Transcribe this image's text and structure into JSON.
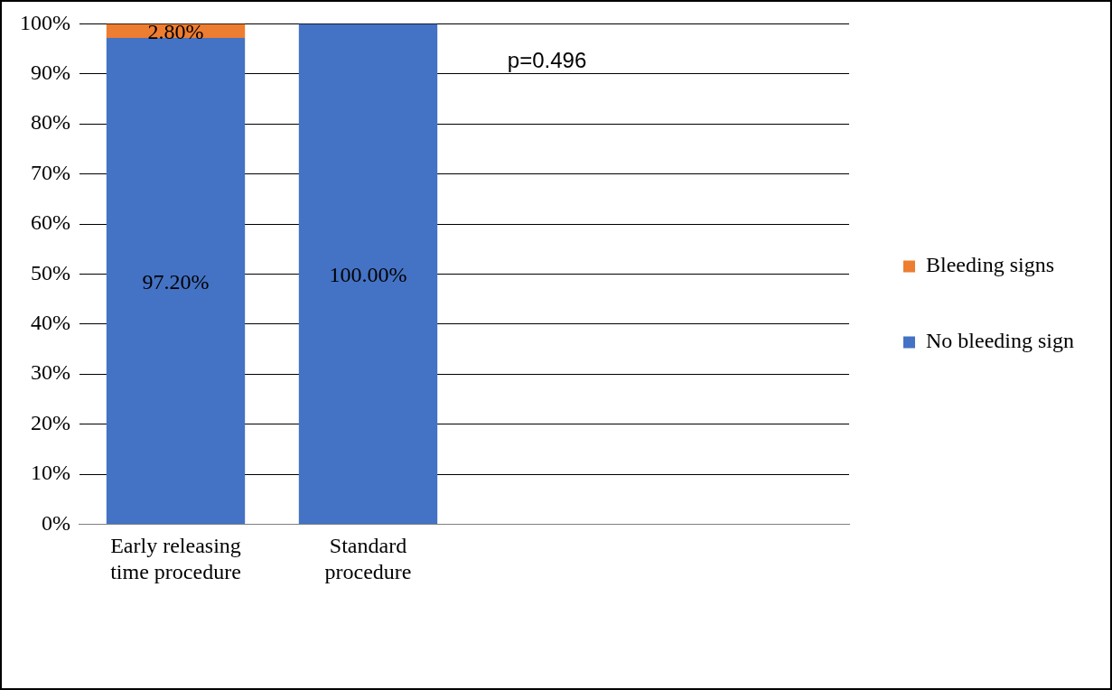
{
  "chart_data": {
    "type": "bar",
    "stacked": true,
    "categories": [
      "Early releasing time procedure",
      "Standard procedure",
      null,
      null
    ],
    "series": [
      {
        "name": "No bleeding sign",
        "color": "#4472c4",
        "values": [
          97.2,
          100,
          null,
          null
        ],
        "value_labels": [
          "97.20%",
          "100.00%",
          null,
          null
        ]
      },
      {
        "name": "Bleeding signs",
        "color": "#ed7d31",
        "values": [
          2.8,
          0,
          null,
          null
        ],
        "value_labels": [
          "2.80%",
          null,
          null,
          null
        ]
      }
    ],
    "ylim": [
      0,
      100
    ],
    "yticks": [
      {
        "value": 0,
        "label": "0%"
      },
      {
        "value": 10,
        "label": "10%"
      },
      {
        "value": 20,
        "label": "20%"
      },
      {
        "value": 30,
        "label": "30%"
      },
      {
        "value": 40,
        "label": "40%"
      },
      {
        "value": 50,
        "label": "50%"
      },
      {
        "value": 60,
        "label": "60%"
      },
      {
        "value": 70,
        "label": "70%"
      },
      {
        "value": 80,
        "label": "80%"
      },
      {
        "value": 90,
        "label": "90%"
      },
      {
        "value": 100,
        "label": "100%"
      }
    ],
    "grid": "y",
    "legend": "right",
    "annotations": [
      "p=0.496"
    ]
  }
}
